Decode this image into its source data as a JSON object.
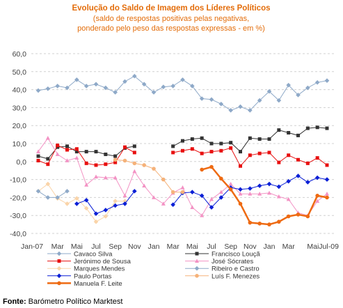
{
  "chart_data": {
    "type": "line",
    "title": "Evolução do Saldo de Imagem dos Líderes Políticos",
    "subtitle_lines": [
      "(saldo de respostas positivas pelas negativas,",
      "ponderado pelo peso das respostas expressas - em %)"
    ],
    "ylim": [
      -40,
      60
    ],
    "yticks": [
      "60,0",
      "50,0",
      "40,0",
      "30,0",
      "20,0",
      "10,0",
      "0,0",
      "-10,0",
      "-20,0",
      "-30,0",
      "-40,0"
    ],
    "xticks": [
      "Jan-07",
      "Mar",
      "Mai",
      "Jul",
      "Sep",
      "Nov",
      "Jan",
      "Mar",
      "Mai",
      "Jul",
      "Sep",
      "Nov",
      "Jan",
      "Mar",
      "MaiJul-09"
    ],
    "grid": true,
    "legend_placement": "bottom",
    "series": [
      {
        "name": "Cavaco Silva",
        "color": "#8EA9C8",
        "marker": "diamond",
        "width": 1,
        "values": [
          39.5,
          40.5,
          42,
          41,
          45.5,
          42,
          43,
          41,
          38.5,
          44.5,
          47.5,
          43,
          38.5,
          41.5,
          42,
          45.5,
          42,
          35,
          34.5,
          32,
          28.5,
          30.5,
          28.5,
          34,
          39,
          34,
          42.5,
          37,
          41,
          44,
          45
        ]
      },
      {
        "name": "Francisco Louçã",
        "color": "#333333",
        "marker": "square",
        "width": 1,
        "values": [
          3,
          1.5,
          8,
          8.5,
          5.5,
          5.5,
          5.5,
          4,
          3,
          7.5,
          8.5,
          null,
          null,
          null,
          8.5,
          11.5,
          12.5,
          13,
          10,
          10,
          10.5,
          5.5,
          13,
          12.5,
          12.5,
          17.5,
          16,
          14.5,
          18.5,
          19,
          18.5
        ]
      },
      {
        "name": "Jerónimo de Sousa",
        "color": "#E81010",
        "marker": "square",
        "width": 1,
        "values": [
          0.5,
          -1.5,
          9,
          6.5,
          7,
          -1,
          -2,
          -1.5,
          -0.5,
          8,
          5,
          null,
          null,
          null,
          5,
          6,
          7,
          4.5,
          5.5,
          6,
          7.5,
          -2.5,
          3.5,
          4.5,
          5,
          -0.5,
          3.5,
          1,
          -1,
          2,
          -2
        ]
      },
      {
        "name": "José Sócrates",
        "color": "#F392C4",
        "marker": "triangle",
        "width": 1,
        "values": [
          5.5,
          13,
          4,
          0.5,
          2,
          -13,
          -8.5,
          -9,
          -9,
          -19,
          -5.5,
          -13.5,
          -20,
          -23.5,
          -17.5,
          -14.5,
          -25.5,
          -30,
          -21,
          -17,
          -12.5,
          -18,
          -18,
          -18,
          -17.5,
          -19.5,
          -21,
          -28.5,
          -30,
          -22,
          -18
        ]
      },
      {
        "name": "Marques Mendes",
        "color": "#FAD4A8",
        "marker": "diamond",
        "width": 1,
        "values": [
          -16.5,
          -12.5,
          -20.5,
          -23.5,
          -20.5,
          -26,
          -33.5,
          -30.5,
          -22,
          -22,
          null,
          null,
          null,
          null,
          null,
          null,
          null,
          null,
          null,
          null,
          null,
          null,
          null,
          null,
          null,
          null,
          null,
          null,
          null,
          null,
          null
        ]
      },
      {
        "name": "Ribeiro e Castro",
        "color": "#8EA9C8",
        "marker": "diamond",
        "width": 1,
        "values": [
          -16.5,
          -20,
          -20,
          -16.5,
          null,
          null,
          null,
          null,
          null,
          null,
          null,
          null,
          null,
          null,
          null,
          null,
          null,
          null,
          null,
          null,
          null,
          null,
          null,
          null,
          null,
          null,
          null,
          null,
          null,
          null,
          null
        ]
      },
      {
        "name": "Paulo Portas",
        "color": "#0A1FD6",
        "marker": "diamond",
        "width": 1,
        "values": [
          null,
          null,
          null,
          null,
          -23.5,
          -21.5,
          -29,
          -27,
          -24.5,
          -23.5,
          -16.5,
          null,
          null,
          null,
          -24,
          -17.5,
          -17,
          -19,
          -25.5,
          -20,
          -14.5,
          -15.5,
          -15,
          -13.5,
          -12.5,
          -14,
          -11,
          -8,
          -11.5,
          -9,
          -10
        ]
      },
      {
        "name": "Luís F. Menezes",
        "color": "#F5B27A",
        "marker": "circle",
        "width": 1,
        "values": [
          null,
          null,
          null,
          null,
          null,
          null,
          null,
          null,
          1,
          0.5,
          -1,
          -2,
          -4,
          -10,
          -17,
          -17,
          null,
          null,
          null,
          null,
          null,
          null,
          null,
          null,
          null,
          null,
          null,
          null,
          null,
          null,
          null
        ]
      },
      {
        "name": "Manuela F. Leite",
        "color": "#EE6A12",
        "marker": "circle",
        "width": 2.5,
        "values": [
          null,
          null,
          null,
          null,
          null,
          null,
          null,
          null,
          null,
          null,
          null,
          null,
          null,
          null,
          null,
          null,
          null,
          -4.5,
          -3,
          -9.5,
          -15.5,
          -23.5,
          -34,
          -34.5,
          -35,
          -33.5,
          -30.5,
          -29.5,
          -30.5,
          -19,
          -20
        ]
      }
    ]
  },
  "legend": [
    {
      "label": "Cavaco Silva",
      "color": "#8EA9C8",
      "marker": "diamond"
    },
    {
      "label": "Francisco Louçã",
      "color": "#333333",
      "marker": "square"
    },
    {
      "label": "Jerónimo de Sousa",
      "color": "#E81010",
      "marker": "square"
    },
    {
      "label": "José Sócrates",
      "color": "#F392C4",
      "marker": "triangle"
    },
    {
      "label": "Marques Mendes",
      "color": "#FAD4A8",
      "marker": "diamond"
    },
    {
      "label": "Ribeiro e Castro",
      "color": "#8EA9C8",
      "marker": "diamond"
    },
    {
      "label": "Paulo Portas",
      "color": "#0A1FD6",
      "marker": "diamond"
    },
    {
      "label": "Luís F. Menezes",
      "color": "#F5B27A",
      "marker": "circle"
    },
    {
      "label": "Manuela F. Leite",
      "color": "#EE6A12",
      "marker": "circle"
    }
  ],
  "source": {
    "label": "Fonte:",
    "text": " Barómetro Político Marktest"
  }
}
